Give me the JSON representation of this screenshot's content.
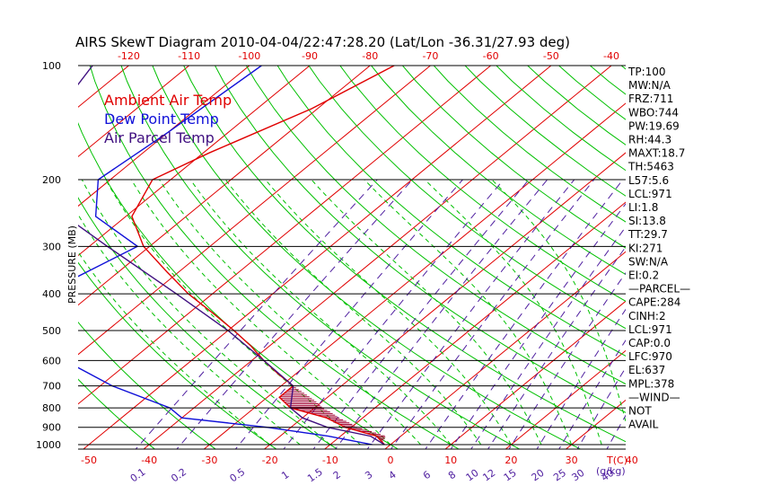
{
  "chart_data": {
    "type": "skewt",
    "title": "AIRS SkewT Diagram 2010-04-04/22:47:28.20 (Lat/Lon -36.31/27.93 deg)",
    "ylabel": "PRESSURE (MB)",
    "xlabel_bottom_right": "T(C)",
    "mixing_ratio_unit": "g/kg",
    "pressure_ticks": [
      100,
      200,
      300,
      400,
      500,
      600,
      700,
      800,
      900,
      1000
    ],
    "top_temp_ticks": [
      -120,
      -110,
      -100,
      -90,
      -80,
      -70,
      -60,
      -50,
      -40
    ],
    "bottom_temp_ticks": [
      -50,
      -40,
      -30,
      -20,
      -10,
      0,
      10,
      20,
      30,
      40
    ],
    "mixing_ratio_ticks": [
      0.1,
      0.2,
      0.5,
      1,
      1.5,
      2,
      3,
      4,
      6,
      8,
      10,
      12,
      15,
      20,
      25,
      30,
      40
    ],
    "legend": [
      {
        "label": "Ambient Air Temp",
        "color": "#e00000"
      },
      {
        "label": "Dew Point Temp",
        "color": "#1010d8"
      },
      {
        "label": "Air Parcel Temp",
        "color": "#401080"
      }
    ],
    "series": [
      {
        "name": "Ambient Air Temp",
        "color": "#e00000",
        "points": [
          [
            100,
            -76
          ],
          [
            130,
            -81
          ],
          [
            170,
            -89
          ],
          [
            200,
            -93
          ],
          [
            250,
            -89
          ],
          [
            300,
            -81
          ],
          [
            350,
            -72
          ],
          [
            400,
            -64
          ],
          [
            450,
            -56
          ],
          [
            500,
            -49
          ],
          [
            550,
            -43
          ],
          [
            600,
            -38
          ],
          [
            650,
            -33
          ],
          [
            700,
            -28
          ],
          [
            750,
            -28
          ],
          [
            800,
            -24
          ],
          [
            850,
            -16
          ],
          [
            900,
            -11
          ],
          [
            950,
            -4
          ],
          [
            1000,
            -1
          ]
        ]
      },
      {
        "name": "Dew Point Temp",
        "color": "#1010d8",
        "points": [
          [
            100,
            -98
          ],
          [
            150,
            -100
          ],
          [
            200,
            -102
          ],
          [
            250,
            -95
          ],
          [
            300,
            -82
          ],
          [
            400,
            -88
          ],
          [
            500,
            -94
          ],
          [
            600,
            -71
          ],
          [
            700,
            -58
          ],
          [
            800,
            -44
          ],
          [
            850,
            -40
          ],
          [
            900,
            -24
          ],
          [
            950,
            -12
          ],
          [
            1000,
            -3
          ]
        ]
      },
      {
        "name": "Air Parcel Temp",
        "color": "#401080",
        "points": [
          [
            100,
            -126
          ],
          [
            150,
            -121
          ],
          [
            200,
            -115
          ],
          [
            250,
            -100
          ],
          [
            300,
            -87
          ],
          [
            400,
            -66
          ],
          [
            500,
            -50
          ],
          [
            600,
            -38
          ],
          [
            700,
            -28
          ],
          [
            800,
            -24
          ],
          [
            850,
            -20
          ],
          [
            900,
            -14
          ],
          [
            950,
            -5
          ],
          [
            1000,
            -1
          ]
        ]
      }
    ],
    "stats": [
      "TP:100",
      "MW:N/A",
      "FRZ:711",
      "WBO:744",
      "PW:19.69",
      "RH:44.3",
      "MAXT:18.7",
      "TH:5463",
      "L57:5.6",
      "LCL:971",
      "LI:1.8",
      "SI:13.8",
      "TT:29.7",
      "KI:271",
      "SW:N/A",
      "EI:0.2",
      "—PARCEL—",
      "CAPE:284",
      "CINH:2",
      "LCL:971",
      "CAP:0.0",
      "LFC:970",
      "EL:637",
      "MPL:378",
      "—WIND—",
      "NOT",
      "AVAIL"
    ]
  },
  "colors": {
    "isotherm": "#e00000",
    "dry_adiabat": "#00c000",
    "moist_adiabat": "#00c000",
    "mixing_ratio": "#5020a0",
    "isobar": "#000000",
    "hatch": "#a00030"
  }
}
